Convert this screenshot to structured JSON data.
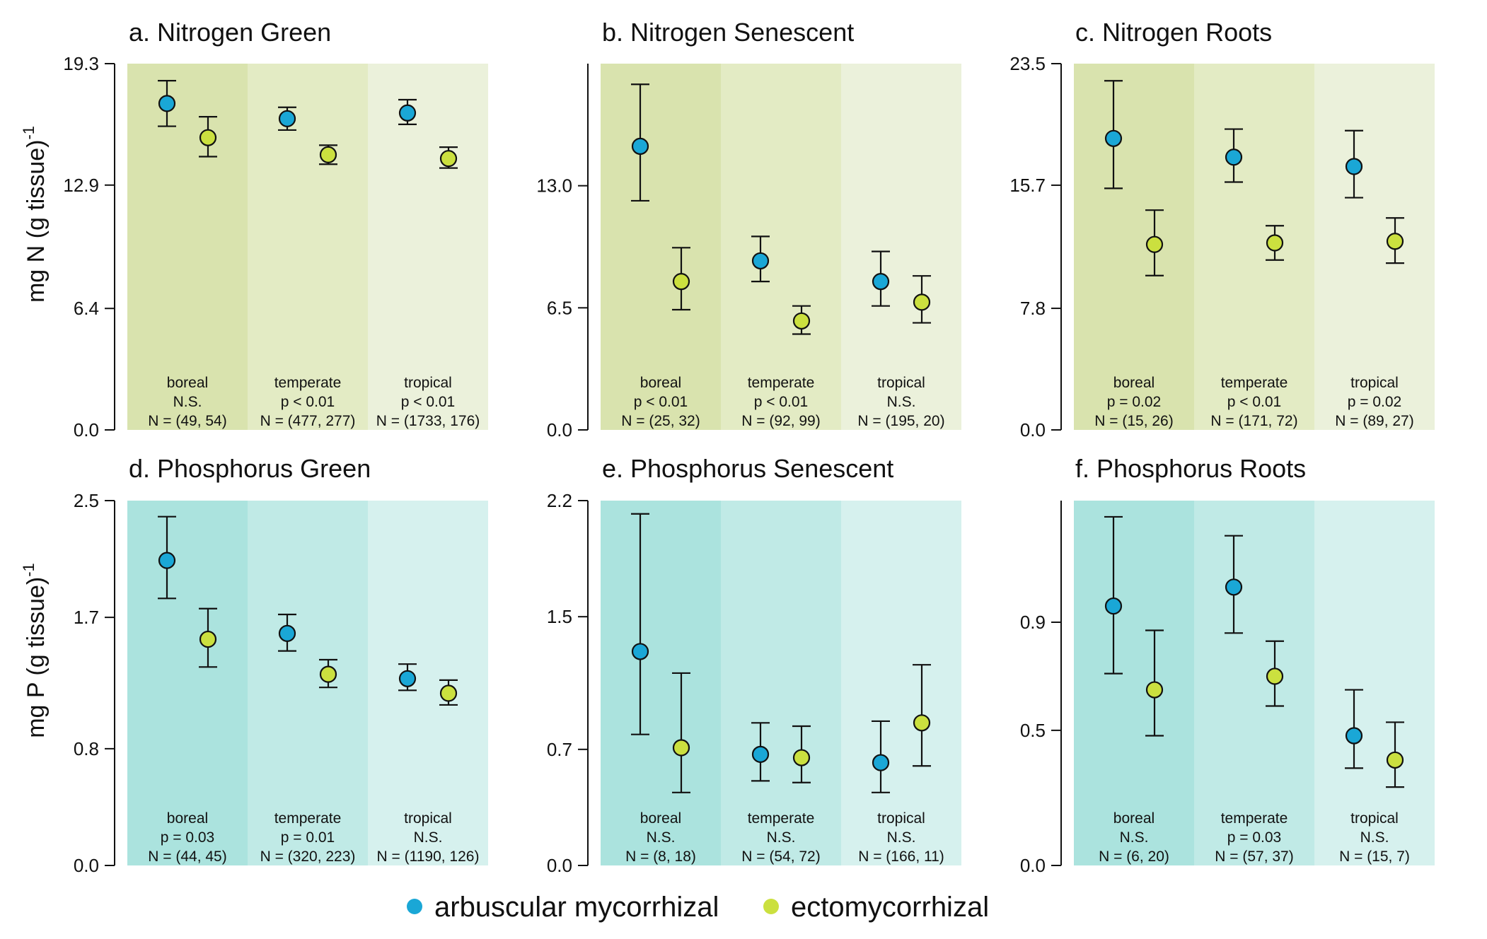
{
  "colors": {
    "am": "#1aa7d6",
    "ecm": "#cbe03f",
    "nitrogen_bands": [
      "#d9e3ae",
      "#e3ebc4",
      "#ebf1db"
    ],
    "phosphorus_bands": [
      "#abe3de",
      "#c0eae6",
      "#d6f1ee"
    ]
  },
  "legend": [
    {
      "label": "arbuscular mycorrhizal",
      "color": "#1aa7d6"
    },
    {
      "label": "ectomycorrhizal",
      "color": "#cbe03f"
    }
  ],
  "y_axis_labels": {
    "nitrogen": {
      "main": "mg N (g tissue)",
      "sup": "-1"
    },
    "phosphorus": {
      "main": "mg P (g tissue)",
      "sup": "-1"
    }
  },
  "chart_data": [
    {
      "type": "scatter",
      "title": "a. Nitrogen Green",
      "ylim": [
        0,
        19.3
      ],
      "yticks": [
        "0.0",
        "6.4",
        "12.9",
        "19.3"
      ],
      "series_names": [
        "arbuscular mycorrhizal",
        "ectomycorrhizal"
      ],
      "groups": [
        {
          "biome": "boreal",
          "sig": "N.S.",
          "n": "N = (49, 54)",
          "am": {
            "mean": 17.2,
            "lo": 16.0,
            "hi": 18.4
          },
          "ecm": {
            "mean": 15.4,
            "lo": 14.4,
            "hi": 16.5
          }
        },
        {
          "biome": "temperate",
          "sig": "p < 0.01",
          "n": "N = (477, 277)",
          "am": {
            "mean": 16.4,
            "lo": 15.8,
            "hi": 17.0
          },
          "ecm": {
            "mean": 14.5,
            "lo": 14.0,
            "hi": 15.0
          }
        },
        {
          "biome": "tropical",
          "sig": "p < 0.01",
          "n": "N = (1733, 176)",
          "am": {
            "mean": 16.7,
            "lo": 16.1,
            "hi": 17.4
          },
          "ecm": {
            "mean": 14.3,
            "lo": 13.8,
            "hi": 14.9
          }
        }
      ]
    },
    {
      "type": "scatter",
      "title": "b. Nitrogen Senescent",
      "ylim": [
        0,
        19.5
      ],
      "yticks": [
        "0.0",
        "6.5",
        "13.0"
      ],
      "series_names": [
        "arbuscular mycorrhizal",
        "ectomycorrhizal"
      ],
      "groups": [
        {
          "biome": "boreal",
          "sig": "p < 0.01",
          "n": "N = (25, 32)",
          "am": {
            "mean": 15.1,
            "lo": 12.2,
            "hi": 18.4
          },
          "ecm": {
            "mean": 7.9,
            "lo": 6.4,
            "hi": 9.7
          }
        },
        {
          "biome": "temperate",
          "sig": "p < 0.01",
          "n": "N = (92, 99)",
          "am": {
            "mean": 9.0,
            "lo": 7.9,
            "hi": 10.3
          },
          "ecm": {
            "mean": 5.8,
            "lo": 5.1,
            "hi": 6.6
          }
        },
        {
          "biome": "tropical",
          "sig": "N.S.",
          "n": "N = (195, 20)",
          "am": {
            "mean": 7.9,
            "lo": 6.6,
            "hi": 9.5
          },
          "ecm": {
            "mean": 6.8,
            "lo": 5.7,
            "hi": 8.2
          }
        }
      ]
    },
    {
      "type": "scatter",
      "title": "c. Nitrogen Roots",
      "ylim": [
        0,
        23.5
      ],
      "yticks": [
        "0.0",
        "7.8",
        "15.7",
        "23.5"
      ],
      "series_names": [
        "arbuscular mycorrhizal",
        "ectomycorrhizal"
      ],
      "groups": [
        {
          "biome": "boreal",
          "sig": "p = 0.02",
          "n": "N = (15, 26)",
          "am": {
            "mean": 18.7,
            "lo": 15.5,
            "hi": 22.4
          },
          "ecm": {
            "mean": 11.9,
            "lo": 9.9,
            "hi": 14.1
          }
        },
        {
          "biome": "temperate",
          "sig": "p < 0.01",
          "n": "N = (171, 72)",
          "am": {
            "mean": 17.5,
            "lo": 15.9,
            "hi": 19.3
          },
          "ecm": {
            "mean": 12.0,
            "lo": 10.9,
            "hi": 13.1
          }
        },
        {
          "biome": "tropical",
          "sig": "p = 0.02",
          "n": "N = (89, 27)",
          "am": {
            "mean": 16.9,
            "lo": 14.9,
            "hi": 19.2
          },
          "ecm": {
            "mean": 12.1,
            "lo": 10.7,
            "hi": 13.6
          }
        }
      ]
    },
    {
      "type": "scatter",
      "title": "d. Phosphorus Green",
      "ylim": [
        0,
        2.5
      ],
      "yticks": [
        "0.0",
        "0.8",
        "1.7",
        "2.5"
      ],
      "series_names": [
        "arbuscular mycorrhizal",
        "ectomycorrhizal"
      ],
      "groups": [
        {
          "biome": "boreal",
          "sig": "p = 0.03",
          "n": "N = (44, 45)",
          "am": {
            "mean": 2.09,
            "lo": 1.83,
            "hi": 2.39
          },
          "ecm": {
            "mean": 1.55,
            "lo": 1.36,
            "hi": 1.76
          }
        },
        {
          "biome": "temperate",
          "sig": "p = 0.01",
          "n": "N = (320, 223)",
          "am": {
            "mean": 1.59,
            "lo": 1.47,
            "hi": 1.72
          },
          "ecm": {
            "mean": 1.31,
            "lo": 1.22,
            "hi": 1.41
          }
        },
        {
          "biome": "tropical",
          "sig": "N.S.",
          "n": "N = (1190, 126)",
          "am": {
            "mean": 1.28,
            "lo": 1.2,
            "hi": 1.38
          },
          "ecm": {
            "mean": 1.18,
            "lo": 1.1,
            "hi": 1.27
          }
        }
      ]
    },
    {
      "type": "scatter",
      "title": "e. Phosphorus Senescent",
      "ylim": [
        0,
        2.2
      ],
      "yticks": [
        "0.0",
        "0.7",
        "1.5",
        "2.2"
      ],
      "series_names": [
        "arbuscular mycorrhizal",
        "ectomycorrhizal"
      ],
      "groups": [
        {
          "biome": "boreal",
          "sig": "N.S.",
          "n": "N = (8, 18)",
          "am": {
            "mean": 1.29,
            "lo": 0.79,
            "hi": 2.12
          },
          "ecm": {
            "mean": 0.71,
            "lo": 0.44,
            "hi": 1.16
          }
        },
        {
          "biome": "temperate",
          "sig": "N.S.",
          "n": "N = (54, 72)",
          "am": {
            "mean": 0.67,
            "lo": 0.51,
            "hi": 0.86
          },
          "ecm": {
            "mean": 0.65,
            "lo": 0.5,
            "hi": 0.84
          }
        },
        {
          "biome": "tropical",
          "sig": "N.S.",
          "n": "N = (166, 11)",
          "am": {
            "mean": 0.62,
            "lo": 0.44,
            "hi": 0.87
          },
          "ecm": {
            "mean": 0.86,
            "lo": 0.6,
            "hi": 1.21
          }
        }
      ]
    },
    {
      "type": "scatter",
      "title": "f. Phosphorus Roots",
      "ylim": [
        0,
        1.35
      ],
      "yticks": [
        "0.0",
        "0.5",
        "0.9"
      ],
      "series_names": [
        "arbuscular mycorrhizal",
        "ectomycorrhizal"
      ],
      "groups": [
        {
          "biome": "boreal",
          "sig": "N.S.",
          "n": "N = (6, 20)",
          "am": {
            "mean": 0.96,
            "lo": 0.71,
            "hi": 1.29
          },
          "ecm": {
            "mean": 0.65,
            "lo": 0.48,
            "hi": 0.87
          }
        },
        {
          "biome": "temperate",
          "sig": "p = 0.03",
          "n": "N = (57, 37)",
          "am": {
            "mean": 1.03,
            "lo": 0.86,
            "hi": 1.22
          },
          "ecm": {
            "mean": 0.7,
            "lo": 0.59,
            "hi": 0.83
          }
        },
        {
          "biome": "tropical",
          "sig": "N.S.",
          "n": "N = (15, 7)",
          "am": {
            "mean": 0.48,
            "lo": 0.36,
            "hi": 0.65
          },
          "ecm": {
            "mean": 0.39,
            "lo": 0.29,
            "hi": 0.53
          }
        }
      ]
    }
  ]
}
